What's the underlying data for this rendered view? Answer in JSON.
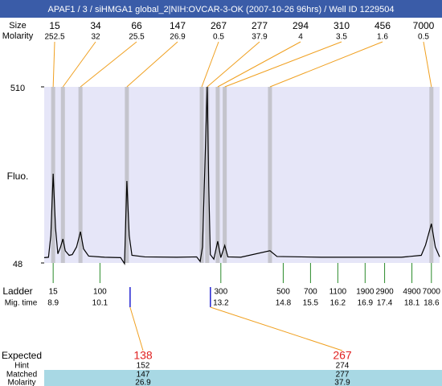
{
  "title": "APAF1 / 3 / siHMGA1 global_2|NIH:OVCAR-3-OK (2007-10-26 96hrs) / Well ID 1229504",
  "chart_data": {
    "type": "line",
    "ylabel": "Fluo.",
    "color": "#000000",
    "ylim": [
      48,
      510
    ],
    "yticks": [
      48,
      510
    ],
    "xlim": [
      8.67,
      18.81
    ],
    "x": [
      8.67,
      8.78,
      8.84,
      8.9,
      8.96,
      9.02,
      9.09,
      9.15,
      9.21,
      9.31,
      9.39,
      9.5,
      9.6,
      9.68,
      9.81,
      10.22,
      10.63,
      10.73,
      10.79,
      10.85,
      10.92,
      11.25,
      12.07,
      12.58,
      12.67,
      12.73,
      12.79,
      12.85,
      12.89,
      12.93,
      13.02,
      13.12,
      13.2,
      13.3,
      13.38,
      13.71,
      14.46,
      14.64,
      15.77,
      17.83,
      18.34,
      18.45,
      18.6,
      18.7,
      18.81
    ],
    "values": [
      62,
      63,
      120,
      282,
      140,
      72,
      90,
      111,
      80,
      68,
      70,
      90,
      130,
      85,
      66,
      63,
      62,
      46,
      263,
      120,
      68,
      64,
      63,
      64,
      52,
      90,
      300,
      510,
      250,
      70,
      58,
      105,
      62,
      94,
      64,
      63,
      80,
      65,
      63,
      63,
      68,
      95,
      151,
      90,
      64
    ]
  },
  "peaks": {
    "size_label": "Size",
    "molarity_label": "Molarity",
    "times": [
      8.9,
      9.15,
      9.6,
      10.79,
      12.71,
      12.85,
      13.12,
      13.3,
      14.46,
      18.6
    ],
    "sizes": [
      15,
      34,
      66,
      147,
      267,
      277,
      294,
      310,
      456,
      7000
    ],
    "molarities": [
      252.5,
      32,
      25.5,
      26.9,
      0.5,
      37.9,
      4,
      3.5,
      1.6,
      0.5
    ]
  },
  "ladder": {
    "label": "Ladder",
    "time_label": "Mig. time",
    "sizes": [
      15,
      100,
      300,
      500,
      700,
      1100,
      1900,
      2900,
      4900,
      7000
    ],
    "times": [
      8.9,
      10.1,
      13.2,
      14.8,
      15.5,
      16.2,
      16.9,
      17.4,
      18.1,
      18.6
    ]
  },
  "matches": {
    "expected_label": "Expected",
    "hint_label": "Hint",
    "matched_label": "Matched",
    "molarity_label": "Molarity",
    "expected": [
      138,
      267
    ],
    "hint": [
      152,
      274
    ],
    "matched": [
      147,
      277
    ],
    "molarity": [
      26.9,
      37.9
    ]
  }
}
